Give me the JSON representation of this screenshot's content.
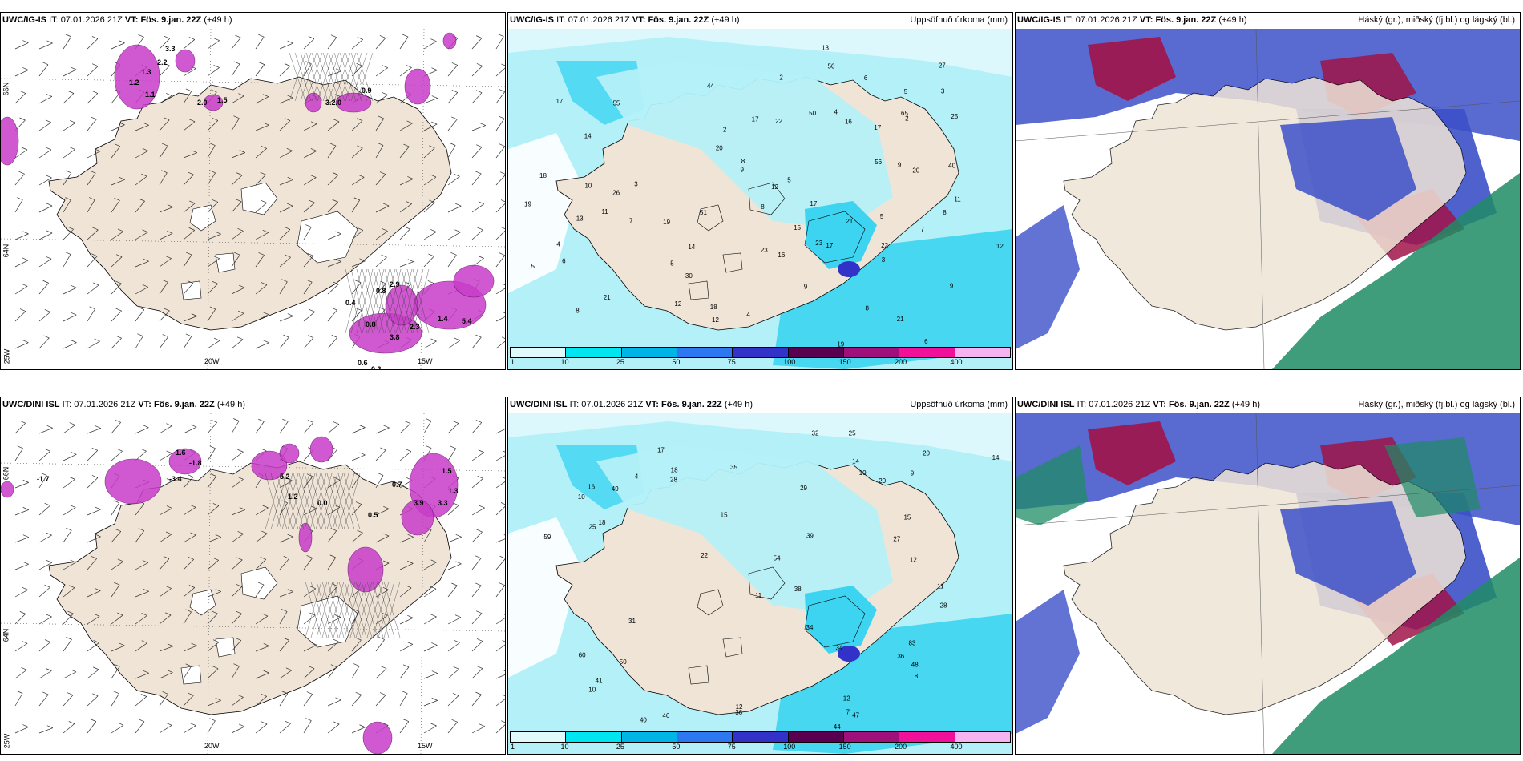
{
  "panels": [
    {
      "model": "UWC/IG-IS",
      "it_label": "IT:",
      "it": "07.01.2026 21Z",
      "vt_label": "VT:",
      "vt": "Fös. 9.jan. 22Z",
      "lead": "(+49 h)",
      "right_title": ""
    },
    {
      "model": "UWC/IG-IS",
      "it_label": "IT:",
      "it": "07.01.2026 21Z",
      "vt_label": "VT:",
      "vt": "Fös. 9.jan. 22Z",
      "lead": "(+49 h)",
      "right_title": "Uppsöfnuð úrkoma (mm)"
    },
    {
      "model": "UWC/IG-IS",
      "it_label": "IT:",
      "it": "07.01.2026 21Z",
      "vt_label": "VT:",
      "vt": "Fös. 9.jan. 22Z",
      "lead": "(+49 h)",
      "right_title": "Háský (gr.), miðský (fj.bl.) og lágský (bl.)"
    },
    {
      "model": "UWC/DINI ISL",
      "it_label": "IT:",
      "it": "07.01.2026 21Z",
      "vt_label": "VT:",
      "vt": "Fös. 9.jan. 22Z",
      "lead": "(+49 h)",
      "right_title": ""
    },
    {
      "model": "UWC/DINI ISL",
      "it_label": "IT:",
      "it": "07.01.2026 21Z",
      "vt_label": "VT:",
      "vt": "Fös. 9.jan. 22Z",
      "lead": "(+49 h)",
      "right_title": "Uppsöfnuð úrkoma (mm)"
    },
    {
      "model": "UWC/DINI ISL",
      "it_label": "IT:",
      "it": "07.01.2026 21Z",
      "vt_label": "VT:",
      "vt": "Fös. 9.jan. 22Z",
      "lead": "(+49 h)",
      "right_title": "Háský (gr.), miðský (fj.bl.) og lágský (bl.)"
    }
  ],
  "axes": {
    "lat_labels": [
      "66N",
      "64N",
      "25W"
    ],
    "lon_labels": [
      "20W",
      "15W"
    ]
  },
  "legend": {
    "ticks": [
      "1",
      "10",
      "25",
      "50",
      "75",
      "100",
      "150",
      "200",
      "400"
    ],
    "colors": [
      "#e0fafc",
      "#00e6f0",
      "#00b4e6",
      "#2d78f0",
      "#3232c8",
      "#5a0050",
      "#a0107a",
      "#f0109a",
      "#f5b4f0"
    ]
  },
  "colors": {
    "land": "#efe4d6",
    "precip_light": "#b4f0f8",
    "precip_mid": "#3cd4f0",
    "low_cloud": "#3c50c8",
    "mid_cloud": "#a01448",
    "high_cloud": "#1e8c64",
    "snow_purple": "#c83cc8"
  },
  "rain_labels_top": [
    "6",
    "11",
    "23",
    "17",
    "9",
    "14",
    "21",
    "19",
    "17",
    "17",
    "16",
    "21",
    "30",
    "44",
    "17",
    "6",
    "5",
    "12",
    "18",
    "8",
    "27",
    "22",
    "9",
    "12",
    "11",
    "10",
    "7",
    "8",
    "9",
    "3",
    "17",
    "13",
    "5",
    "4",
    "2",
    "7",
    "8",
    "8",
    "5",
    "19",
    "14",
    "16",
    "12",
    "13",
    "51",
    "26",
    "25",
    "50",
    "50",
    "23",
    "21",
    "40",
    "22",
    "20",
    "20",
    "19",
    "12",
    "8",
    "15",
    "56",
    "18",
    "65",
    "55",
    "2",
    "5",
    "4",
    "3",
    "5",
    "6",
    "2",
    "3",
    "4",
    "9"
  ],
  "rain_labels_bottom": [
    "17",
    "15",
    "7",
    "10",
    "9",
    "10",
    "8",
    "11",
    "14",
    "20",
    "41",
    "25",
    "31",
    "25",
    "12",
    "38",
    "27",
    "18",
    "16",
    "15",
    "32",
    "40",
    "22",
    "12",
    "4",
    "14",
    "20",
    "35",
    "34",
    "36",
    "49",
    "54",
    "48",
    "83",
    "60",
    "46",
    "44",
    "47",
    "50",
    "59",
    "39",
    "28",
    "28",
    "18",
    "34",
    "36",
    "10",
    "11",
    "12",
    "29"
  ],
  "temp_labels_top": [
    "3.3",
    "2.2",
    "1.3",
    "1.2",
    "1.1",
    "2.0",
    "1.5",
    "3.2.0",
    "0.9",
    "0.4",
    "5.4",
    "0.8",
    "1.4",
    "0.8",
    "2.3",
    "3.8",
    "0.6",
    "0.2",
    "2.9"
  ],
  "temp_labels_bottom": [
    "-1.7",
    "-1.6",
    "-3.4",
    "-1.8",
    "-5.2",
    "-1.2",
    "3.3",
    "0.7",
    "0.5",
    "0.0",
    "1.5",
    "3.9",
    "1.3"
  ]
}
